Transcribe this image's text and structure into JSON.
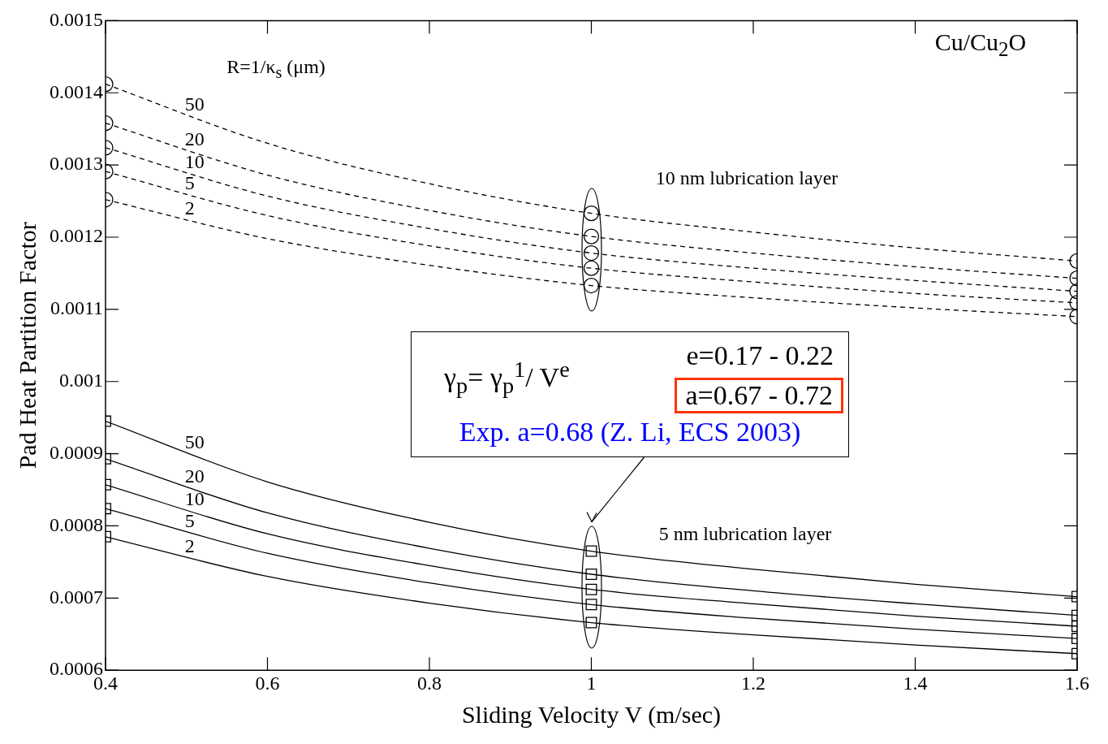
{
  "chart_data": {
    "type": "line",
    "xlabel": "Sliding Velocity V (m/sec)",
    "ylabel": "Pad Heat Partition Factor",
    "xlim": [
      0.4,
      1.6
    ],
    "xticks": [
      0.4,
      0.6,
      0.8,
      1,
      1.2,
      1.4,
      1.6
    ],
    "ylim": [
      0.0006,
      0.0015
    ],
    "yticks": [
      0.0006,
      0.0007,
      0.0008,
      0.0009,
      0.001,
      0.0011,
      0.0012,
      0.0013,
      0.0014,
      0.0015
    ],
    "grid": false,
    "legend": false,
    "x": [
      0.4,
      0.6,
      0.8,
      1,
      1.2,
      1.4,
      1.6
    ],
    "series": [
      {
        "name": "50",
        "line_style": "dashed",
        "color": "#000000",
        "values": [
          0.001412,
          0.00133,
          0.001274,
          0.001233,
          0.001207,
          0.001185,
          0.001167
        ]
      },
      {
        "name": "20",
        "line_style": "dashed",
        "color": "#000000",
        "values": [
          0.001358,
          0.001286,
          0.001237,
          0.001201,
          0.001178,
          0.001159,
          0.001143
        ]
      },
      {
        "name": "10",
        "line_style": "dashed",
        "color": "#000000",
        "values": [
          0.001324,
          0.001257,
          0.001212,
          0.001178,
          0.001157,
          0.00114,
          0.001125
        ]
      },
      {
        "name": "5",
        "line_style": "dashed",
        "color": "#000000",
        "values": [
          0.001291,
          0.00123,
          0.001188,
          0.001157,
          0.001138,
          0.001122,
          0.001109
        ]
      },
      {
        "name": "2",
        "line_style": "dashed",
        "color": "#000000",
        "values": [
          0.001252,
          0.001198,
          0.001161,
          0.001133,
          0.001116,
          0.001102,
          0.00109
        ]
      },
      {
        "type": "scatter",
        "marker": "circle",
        "color": "#000000",
        "x": [
          0.4,
          1,
          1.6
        ],
        "values": [
          0.001412,
          0.001233,
          0.001167
        ]
      },
      {
        "type": "scatter",
        "marker": "circle",
        "color": "#000000",
        "x": [
          0.4,
          1,
          1.6
        ],
        "values": [
          0.001358,
          0.001201,
          0.001143
        ]
      },
      {
        "type": "scatter",
        "marker": "circle",
        "color": "#000000",
        "x": [
          0.4,
          1,
          1.6
        ],
        "values": [
          0.001324,
          0.001178,
          0.001125
        ]
      },
      {
        "type": "scatter",
        "marker": "circle",
        "color": "#000000",
        "x": [
          0.4,
          1,
          1.6
        ],
        "values": [
          0.001291,
          0.001157,
          0.001109
        ]
      },
      {
        "type": "scatter",
        "marker": "circle",
        "color": "#000000",
        "x": [
          0.4,
          1,
          1.6
        ],
        "values": [
          0.001252,
          0.001133,
          0.00109
        ]
      },
      {
        "name": "50",
        "line_style": "solid",
        "color": "#000000",
        "values": [
          0.000945,
          0.000861,
          0.000805,
          0.000765,
          0.00074,
          0.000719,
          0.000702
        ]
      },
      {
        "name": "20",
        "line_style": "solid",
        "color": "#000000",
        "values": [
          0.000893,
          0.000818,
          0.000769,
          0.000733,
          0.00071,
          0.000692,
          0.000676
        ]
      },
      {
        "name": "10",
        "line_style": "solid",
        "color": "#000000",
        "values": [
          0.000857,
          0.000789,
          0.000745,
          0.000712,
          0.000692,
          0.000675,
          0.000661
        ]
      },
      {
        "name": "5",
        "line_style": "solid",
        "color": "#000000",
        "values": [
          0.000824,
          0.000762,
          0.000721,
          0.000691,
          0.000672,
          0.000657,
          0.000644
        ]
      },
      {
        "name": "2",
        "line_style": "solid",
        "color": "#000000",
        "values": [
          0.000785,
          0.00073,
          0.000693,
          0.000666,
          0.000649,
          0.000635,
          0.000623
        ]
      },
      {
        "type": "scatter",
        "marker": "square",
        "color": "#000000",
        "x": [
          0.4,
          1,
          1.6
        ],
        "values": [
          0.000945,
          0.000765,
          0.000702
        ]
      },
      {
        "type": "scatter",
        "marker": "square",
        "color": "#000000",
        "x": [
          0.4,
          1,
          1.6
        ],
        "values": [
          0.000893,
          0.000733,
          0.000676
        ]
      },
      {
        "type": "scatter",
        "marker": "square",
        "color": "#000000",
        "x": [
          0.4,
          1,
          1.6
        ],
        "values": [
          0.000857,
          0.000712,
          0.000661
        ]
      },
      {
        "type": "scatter",
        "marker": "square",
        "color": "#000000",
        "x": [
          0.4,
          1,
          1.6
        ],
        "values": [
          0.000824,
          0.000691,
          0.000644
        ]
      },
      {
        "type": "scatter",
        "marker": "square",
        "color": "#000000",
        "x": [
          0.4,
          1,
          1.6
        ],
        "values": [
          0.000785,
          0.000666,
          0.000623
        ]
      }
    ],
    "annotations": [
      "Cu/Cu$_{2}$O",
      "R=1/κ$_{s}$ (μm)",
      "10 nm lubrication layer",
      "5 nm lubrication layer",
      "γ$_{p}$= γ$_{p}$$^{1}$/ V$^{e}$",
      "e=0.17 - 0.22",
      "a=0.67 - 0.72",
      "Exp. a=0.68 (Z. Li, ECS 2003)"
    ]
  }
}
